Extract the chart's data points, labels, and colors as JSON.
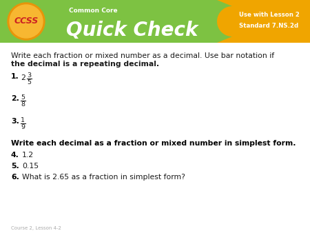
{
  "header_bg_color": "#7dc242",
  "header_text_color": "#ffffff",
  "header_title": "Common Core",
  "header_subtitle": "Quick Check",
  "ccss_bg_color": "#f5a623",
  "ccss_inner_color": "#f7b731",
  "ccss_text": "CCSS",
  "badge_bg_color": "#f0a500",
  "badge_line1": "Use with Lesson 2",
  "badge_line2": "Standard 7.NS.2d",
  "body_bg_color": "#ffffff",
  "instruction1": "Write each fraction or mixed number as a decimal. Use bar notation if",
  "instruction1b": "the decimal is a repeating decimal.",
  "q1_num": "1.",
  "q1_whole": "2",
  "q1_numer": "3",
  "q1_denom": "5",
  "q2_num": "2.",
  "q2_numer": "5",
  "q2_denom": "8",
  "q3_num": "3.",
  "q3_numer": "1",
  "q3_denom": "9",
  "instruction2": "Write each decimal as a fraction or mixed number in simplest form.",
  "q4_num": "4.",
  "q4_text": "1.2",
  "q5_num": "5.",
  "q5_text": "0.15",
  "q6_num": "6.",
  "q6_text": "What is 2.65 as a fraction in simplest form?",
  "footer_text": "Course 2, Lesson 4-2",
  "body_text_color": "#1a1a1a",
  "bold_color": "#000000"
}
